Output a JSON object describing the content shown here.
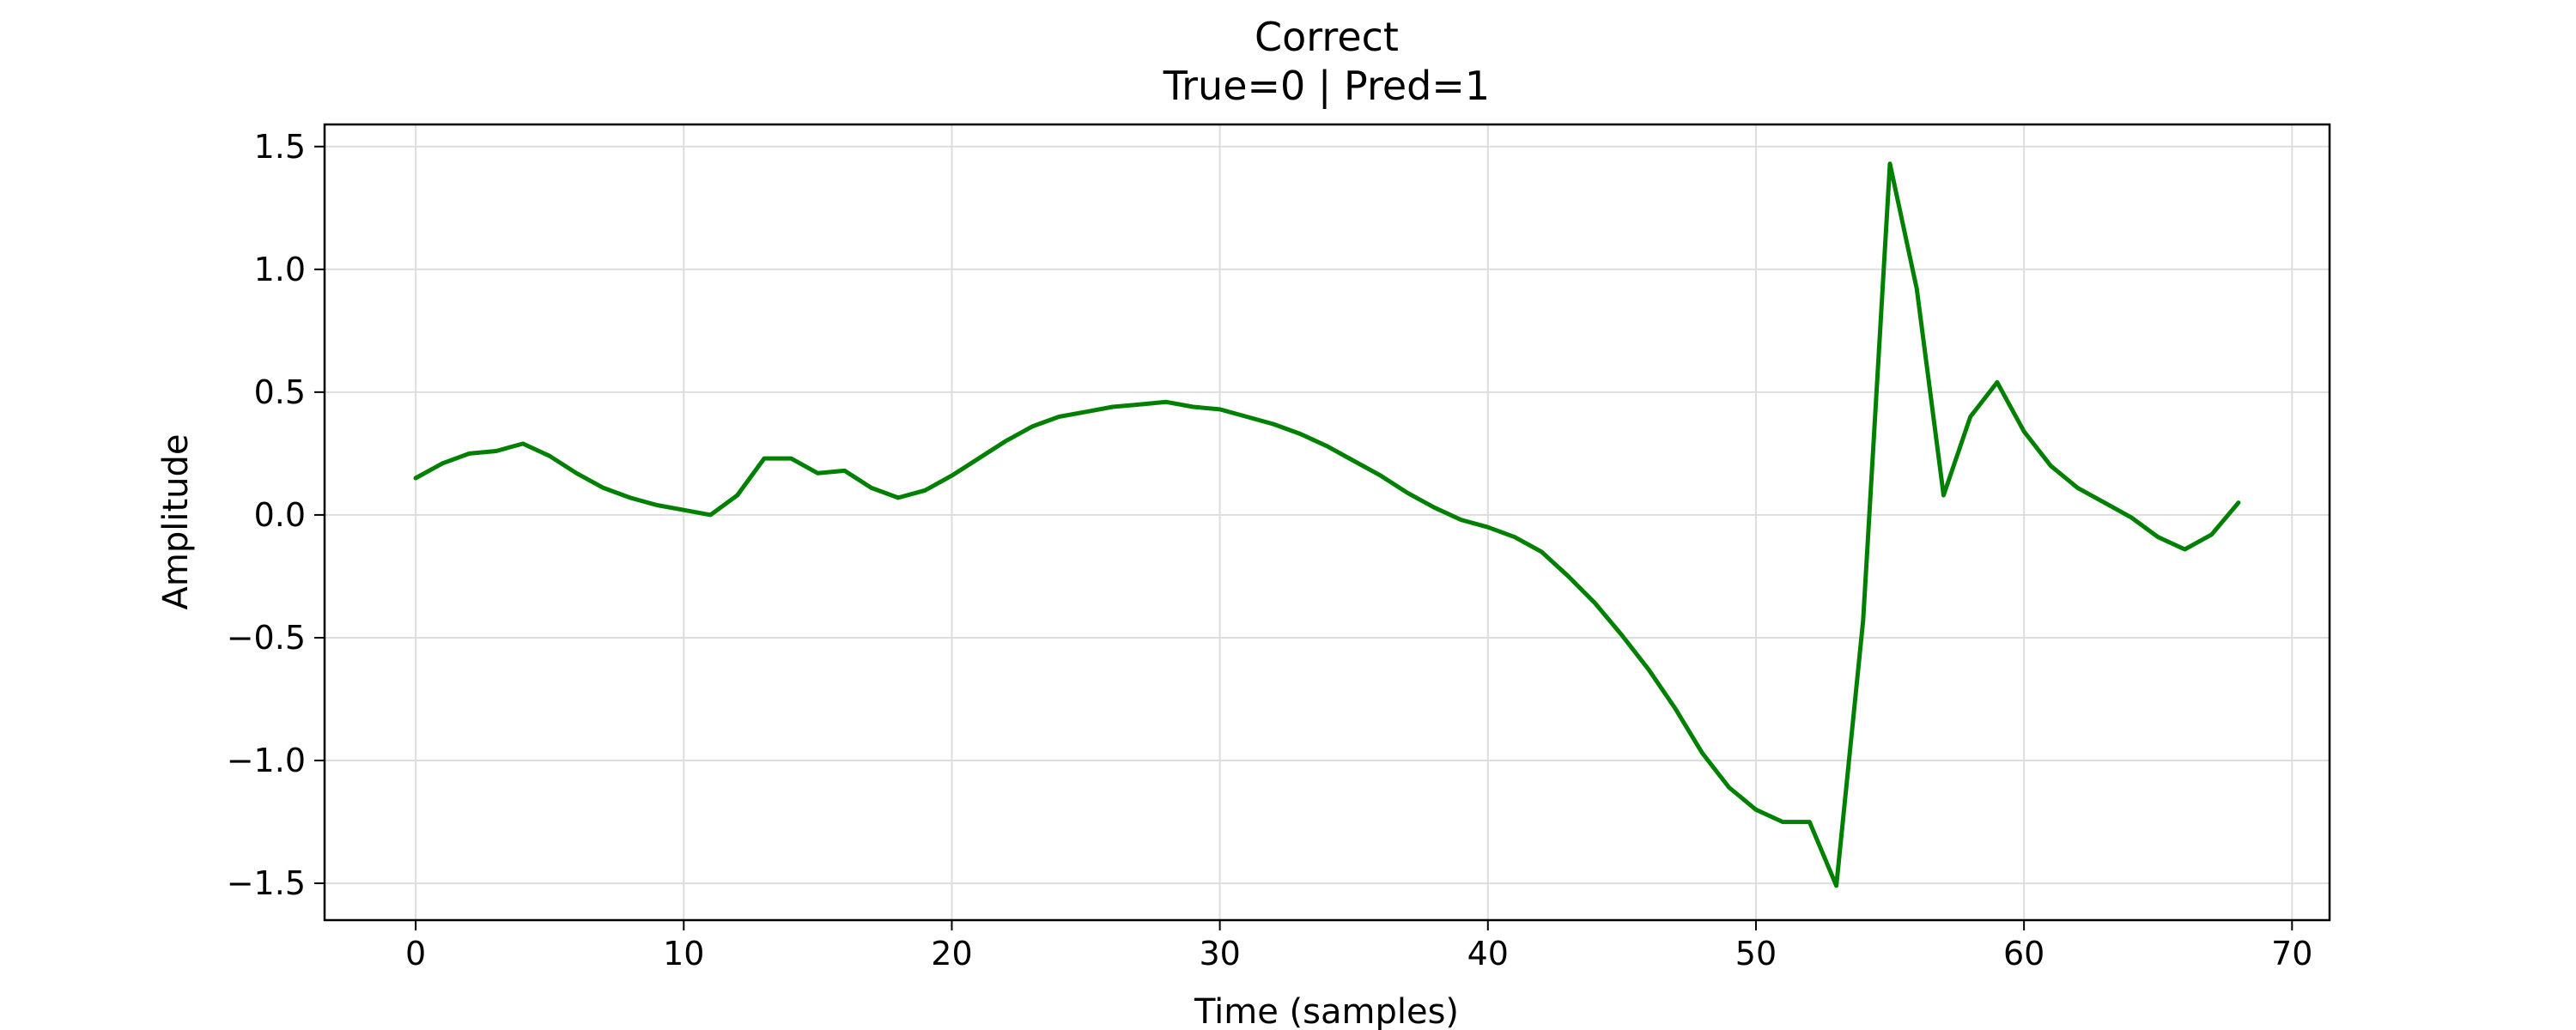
{
  "chart_data": {
    "type": "line",
    "title": "Correct",
    "subtitle": "True=0 | Pred=1",
    "xlabel": "Time (samples)",
    "ylabel": "Amplitude",
    "xlim": [
      -3.4,
      71.4
    ],
    "ylim": [
      -1.65,
      1.59
    ],
    "xticks": [
      0,
      10,
      20,
      30,
      40,
      50,
      60,
      70
    ],
    "xtick_labels": [
      "0",
      "10",
      "20",
      "30",
      "40",
      "50",
      "60",
      "70"
    ],
    "yticks": [
      1.5,
      1.0,
      0.5,
      0.0,
      -0.5,
      -1.0,
      -1.5
    ],
    "ytick_labels": [
      "1.5",
      "1.0",
      "0.5",
      "0.0",
      "−0.5",
      "−1.0",
      "−1.5"
    ],
    "grid": true,
    "color": "#008000",
    "series": [
      {
        "x": [
          0,
          1,
          2,
          3,
          4,
          5,
          6,
          7,
          8,
          9,
          10,
          11,
          12,
          13,
          14,
          15,
          16,
          17,
          18,
          19,
          20,
          21,
          22,
          23,
          24,
          25,
          26,
          27,
          28,
          29,
          30,
          31,
          32,
          33,
          34,
          35,
          36,
          37,
          38,
          39,
          40,
          41,
          42,
          43,
          44,
          45,
          46,
          47,
          48,
          49,
          50,
          51,
          52,
          53,
          54,
          55,
          56,
          57,
          58,
          59,
          60,
          61,
          62,
          63,
          64,
          65,
          66,
          67,
          68
        ],
        "values": [
          0.15,
          0.21,
          0.25,
          0.26,
          0.29,
          0.24,
          0.17,
          0.11,
          0.07,
          0.04,
          0.02,
          0.0,
          0.08,
          0.23,
          0.23,
          0.17,
          0.18,
          0.11,
          0.07,
          0.1,
          0.16,
          0.23,
          0.3,
          0.36,
          0.4,
          0.42,
          0.44,
          0.45,
          0.46,
          0.44,
          0.43,
          0.4,
          0.37,
          0.33,
          0.28,
          0.22,
          0.16,
          0.09,
          0.03,
          -0.02,
          -0.05,
          -0.09,
          -0.15,
          -0.25,
          -0.36,
          -0.49,
          -0.63,
          -0.79,
          -0.97,
          -1.11,
          -1.2,
          -1.25,
          -1.25,
          -1.51,
          -0.43,
          1.43,
          0.92,
          0.08,
          0.4,
          0.54,
          0.34,
          0.2,
          0.11,
          0.05,
          -0.01,
          -0.09,
          -0.14,
          -0.08,
          0.05
        ]
      }
    ]
  }
}
